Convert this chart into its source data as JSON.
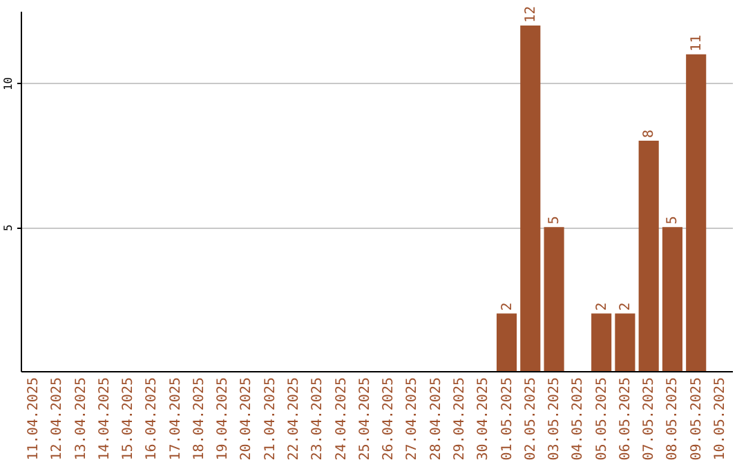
{
  "chart_data": {
    "type": "bar",
    "categories": [
      "11.04.2025",
      "12.04.2025",
      "13.04.2025",
      "14.04.2025",
      "15.04.2025",
      "16.04.2025",
      "17.04.2025",
      "18.04.2025",
      "19.04.2025",
      "20.04.2025",
      "21.04.2025",
      "22.04.2025",
      "23.04.2025",
      "24.04.2025",
      "25.04.2025",
      "26.04.2025",
      "27.04.2025",
      "28.04.2025",
      "29.04.2025",
      "30.04.2025",
      "01.05.2025",
      "02.05.2025",
      "03.05.2025",
      "04.05.2025",
      "05.05.2025",
      "06.05.2025",
      "07.05.2025",
      "08.05.2025",
      "09.05.2025",
      "10.05.2025"
    ],
    "values": [
      null,
      null,
      null,
      null,
      null,
      null,
      null,
      null,
      null,
      null,
      null,
      null,
      null,
      null,
      null,
      null,
      null,
      null,
      null,
      null,
      2,
      12,
      5,
      null,
      2,
      2,
      8,
      5,
      11,
      null
    ],
    "color": "#a0522d",
    "ylim": [
      0,
      12.5
    ],
    "yticks": [
      5,
      10
    ],
    "grid": "y",
    "data_labels": true
  }
}
